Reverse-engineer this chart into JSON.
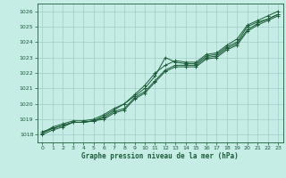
{
  "xlabel": "Graphe pression niveau de la mer (hPa)",
  "background_color": "#c6ece6",
  "grid_color": "#a0cdc8",
  "line_color": "#1a5c38",
  "xlim": [
    -0.5,
    23.5
  ],
  "ylim": [
    1017.5,
    1026.5
  ],
  "yticks": [
    1018,
    1019,
    1020,
    1021,
    1022,
    1023,
    1024,
    1025,
    1026
  ],
  "xticks": [
    0,
    1,
    2,
    3,
    4,
    5,
    6,
    7,
    8,
    9,
    10,
    11,
    12,
    13,
    14,
    15,
    16,
    17,
    18,
    19,
    20,
    21,
    22,
    23
  ],
  "hours": [
    0,
    1,
    2,
    3,
    4,
    5,
    6,
    7,
    8,
    9,
    10,
    11,
    12,
    13,
    14,
    15,
    16,
    17,
    18,
    19,
    20,
    21,
    22,
    23
  ],
  "series": [
    [
      1018.2,
      1018.4,
      1018.6,
      1018.8,
      1018.8,
      1018.9,
      1019.2,
      1019.6,
      1020.0,
      1020.5,
      1021.0,
      1021.8,
      1023.0,
      1022.7,
      1022.6,
      1022.6,
      1023.1,
      1023.2,
      1023.7,
      1024.0,
      1025.0,
      1025.3,
      1025.5,
      1025.8
    ],
    [
      1018.1,
      1018.5,
      1018.7,
      1018.9,
      1018.9,
      1019.0,
      1019.3,
      1019.7,
      1020.0,
      1020.6,
      1021.2,
      1022.0,
      1022.5,
      1022.8,
      1022.7,
      1022.7,
      1023.2,
      1023.3,
      1023.8,
      1024.2,
      1025.1,
      1025.4,
      1025.7,
      1026.0
    ],
    [
      1018.1,
      1018.4,
      1018.6,
      1018.8,
      1018.8,
      1018.9,
      1019.1,
      1019.5,
      1019.7,
      1020.4,
      1020.8,
      1021.5,
      1022.2,
      1022.5,
      1022.5,
      1022.5,
      1023.0,
      1023.1,
      1023.6,
      1023.9,
      1024.8,
      1025.2,
      1025.5,
      1025.8
    ],
    [
      1018.0,
      1018.3,
      1018.5,
      1018.8,
      1018.8,
      1018.9,
      1019.0,
      1019.4,
      1019.6,
      1020.3,
      1020.7,
      1021.4,
      1022.1,
      1022.4,
      1022.4,
      1022.4,
      1022.9,
      1023.0,
      1023.5,
      1023.8,
      1024.7,
      1025.1,
      1025.4,
      1025.7
    ]
  ]
}
